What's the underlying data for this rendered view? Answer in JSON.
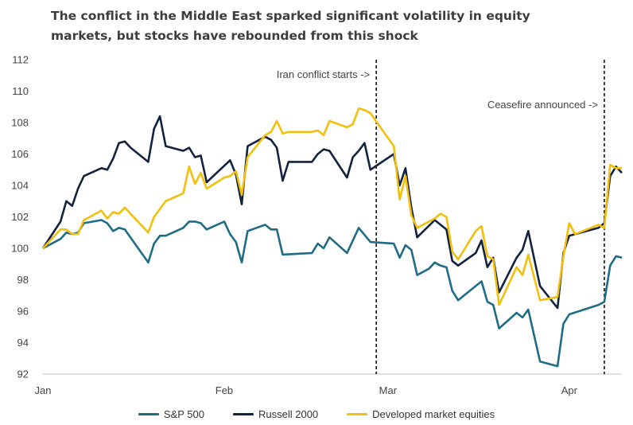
{
  "title_line1": "The conflict in the Middle East sparked significant volatility in equity",
  "title_line2": "markets, but stocks have rebounded from this shock",
  "chart_data": {
    "type": "line",
    "x_ticks": [
      "Jan",
      "Feb",
      "Mar",
      "Apr"
    ],
    "y_ticks": [
      "92",
      "94",
      "96",
      "98",
      "100",
      "102",
      "104",
      "106",
      "108",
      "110",
      "112"
    ],
    "ylim": [
      92,
      112
    ],
    "grid": false,
    "legend": "bottom",
    "annotations": [
      {
        "text": "Iran conflict starts ->",
        "x": "2025-02-27"
      },
      {
        "text": "Ceasefire announced ->",
        "x": "2025-04-07"
      }
    ],
    "series": [
      {
        "name": "S&P 500",
        "color": "#1f6c87",
        "points": [
          [
            "2025-01-01",
            100.0
          ],
          [
            "2025-01-04",
            100.6
          ],
          [
            "2025-01-05",
            101.0
          ],
          [
            "2025-01-06",
            100.9
          ],
          [
            "2025-01-07",
            101.0
          ],
          [
            "2025-01-08",
            101.6
          ],
          [
            "2025-01-11",
            101.8
          ],
          [
            "2025-01-12",
            101.6
          ],
          [
            "2025-01-13",
            101.1
          ],
          [
            "2025-01-14",
            101.3
          ],
          [
            "2025-01-15",
            101.2
          ],
          [
            "2025-01-19",
            99.1
          ],
          [
            "2025-01-20",
            100.3
          ],
          [
            "2025-01-21",
            100.8
          ],
          [
            "2025-01-22",
            100.8
          ],
          [
            "2025-01-25",
            101.3
          ],
          [
            "2025-01-26",
            101.7
          ],
          [
            "2025-01-27",
            101.7
          ],
          [
            "2025-01-28",
            101.6
          ],
          [
            "2025-01-29",
            101.2
          ],
          [
            "2025-02-01",
            101.7
          ],
          [
            "2025-02-02",
            100.9
          ],
          [
            "2025-02-03",
            100.4
          ],
          [
            "2025-02-04",
            99.1
          ],
          [
            "2025-02-05",
            101.1
          ],
          [
            "2025-02-08",
            101.5
          ],
          [
            "2025-02-09",
            101.2
          ],
          [
            "2025-02-10",
            101.2
          ],
          [
            "2025-02-11",
            99.6
          ],
          [
            "2025-02-16",
            99.7
          ],
          [
            "2025-02-17",
            100.3
          ],
          [
            "2025-02-18",
            100.0
          ],
          [
            "2025-02-19",
            100.7
          ],
          [
            "2025-02-22",
            99.7
          ],
          [
            "2025-02-24",
            101.3
          ],
          [
            "2025-02-26",
            100.4
          ],
          [
            "2025-03-02",
            100.3
          ],
          [
            "2025-03-03",
            99.4
          ],
          [
            "2025-03-04",
            100.2
          ],
          [
            "2025-03-05",
            99.9
          ],
          [
            "2025-03-06",
            98.3
          ],
          [
            "2025-03-08",
            98.7
          ],
          [
            "2025-03-09",
            99.1
          ],
          [
            "2025-03-10",
            98.9
          ],
          [
            "2025-03-11",
            98.8
          ],
          [
            "2025-03-12",
            97.3
          ],
          [
            "2025-03-13",
            96.7
          ],
          [
            "2025-03-16",
            97.6
          ],
          [
            "2025-03-17",
            97.9
          ],
          [
            "2025-03-18",
            96.6
          ],
          [
            "2025-03-19",
            96.4
          ],
          [
            "2025-03-20",
            94.9
          ],
          [
            "2025-03-23",
            95.9
          ],
          [
            "2025-03-24",
            95.6
          ],
          [
            "2025-03-25",
            96.1
          ],
          [
            "2025-03-27",
            92.8
          ],
          [
            "2025-03-30",
            92.5
          ],
          [
            "2025-03-31",
            95.2
          ],
          [
            "2025-04-01",
            95.8
          ],
          [
            "2025-04-06",
            96.4
          ],
          [
            "2025-04-07",
            96.6
          ],
          [
            "2025-04-08",
            98.9
          ],
          [
            "2025-04-09",
            99.5
          ],
          [
            "2025-04-10",
            99.4
          ]
        ]
      },
      {
        "name": "Russell 2000",
        "color": "#13233f",
        "points": [
          [
            "2025-01-01",
            100.0
          ],
          [
            "2025-01-04",
            101.7
          ],
          [
            "2025-01-05",
            103.0
          ],
          [
            "2025-01-06",
            102.7
          ],
          [
            "2025-01-07",
            103.8
          ],
          [
            "2025-01-08",
            104.6
          ],
          [
            "2025-01-11",
            105.1
          ],
          [
            "2025-01-12",
            105.0
          ],
          [
            "2025-01-13",
            105.7
          ],
          [
            "2025-01-14",
            106.7
          ],
          [
            "2025-01-15",
            106.8
          ],
          [
            "2025-01-16",
            106.4
          ],
          [
            "2025-01-19",
            105.5
          ],
          [
            "2025-01-20",
            107.6
          ],
          [
            "2025-01-21",
            108.4
          ],
          [
            "2025-01-22",
            106.5
          ],
          [
            "2025-01-25",
            106.2
          ],
          [
            "2025-01-26",
            106.4
          ],
          [
            "2025-01-27",
            105.8
          ],
          [
            "2025-01-28",
            105.9
          ],
          [
            "2025-01-29",
            104.2
          ],
          [
            "2025-02-02",
            105.6
          ],
          [
            "2025-02-03",
            104.7
          ],
          [
            "2025-02-04",
            102.8
          ],
          [
            "2025-02-05",
            106.5
          ],
          [
            "2025-02-08",
            107.1
          ],
          [
            "2025-02-09",
            106.9
          ],
          [
            "2025-02-10",
            106.4
          ],
          [
            "2025-02-11",
            104.3
          ],
          [
            "2025-02-12",
            105.5
          ],
          [
            "2025-02-16",
            105.5
          ],
          [
            "2025-02-17",
            106.0
          ],
          [
            "2025-02-18",
            106.3
          ],
          [
            "2025-02-19",
            106.2
          ],
          [
            "2025-02-22",
            104.5
          ],
          [
            "2025-02-23",
            105.8
          ],
          [
            "2025-02-24",
            106.2
          ],
          [
            "2025-02-25",
            106.7
          ],
          [
            "2025-02-26",
            105.0
          ],
          [
            "2025-03-02",
            106.0
          ],
          [
            "2025-03-03",
            104.0
          ],
          [
            "2025-03-04",
            105.1
          ],
          [
            "2025-03-05",
            102.6
          ],
          [
            "2025-03-06",
            100.7
          ],
          [
            "2025-03-09",
            101.8
          ],
          [
            "2025-03-10",
            101.5
          ],
          [
            "2025-03-11",
            101.2
          ],
          [
            "2025-03-12",
            99.2
          ],
          [
            "2025-03-13",
            98.9
          ],
          [
            "2025-03-16",
            99.7
          ],
          [
            "2025-03-17",
            100.5
          ],
          [
            "2025-03-18",
            98.8
          ],
          [
            "2025-03-19",
            99.4
          ],
          [
            "2025-03-20",
            97.2
          ],
          [
            "2025-03-23",
            99.4
          ],
          [
            "2025-03-24",
            99.9
          ],
          [
            "2025-03-25",
            101.1
          ],
          [
            "2025-03-27",
            97.6
          ],
          [
            "2025-03-30",
            96.2
          ],
          [
            "2025-03-31",
            99.7
          ],
          [
            "2025-04-01",
            100.8
          ],
          [
            "2025-04-06",
            101.3
          ],
          [
            "2025-04-07",
            101.6
          ],
          [
            "2025-04-08",
            104.6
          ],
          [
            "2025-04-09",
            105.2
          ],
          [
            "2025-04-10",
            104.8
          ]
        ]
      },
      {
        "name": "Developed market equities",
        "color": "#f2c00c",
        "points": [
          [
            "2025-01-01",
            100.0
          ],
          [
            "2025-01-04",
            101.2
          ],
          [
            "2025-01-05",
            101.2
          ],
          [
            "2025-01-06",
            100.9
          ],
          [
            "2025-01-07",
            100.9
          ],
          [
            "2025-01-08",
            101.8
          ],
          [
            "2025-01-11",
            102.4
          ],
          [
            "2025-01-12",
            101.9
          ],
          [
            "2025-01-13",
            102.3
          ],
          [
            "2025-01-14",
            102.2
          ],
          [
            "2025-01-15",
            102.6
          ],
          [
            "2025-01-19",
            101.0
          ],
          [
            "2025-01-20",
            102.0
          ],
          [
            "2025-01-22",
            103.0
          ],
          [
            "2025-01-25",
            103.5
          ],
          [
            "2025-01-26",
            105.2
          ],
          [
            "2025-01-27",
            104.1
          ],
          [
            "2025-01-28",
            104.8
          ],
          [
            "2025-01-29",
            103.8
          ],
          [
            "2025-02-01",
            104.5
          ],
          [
            "2025-02-02",
            104.6
          ],
          [
            "2025-02-03",
            104.9
          ],
          [
            "2025-02-04",
            103.4
          ],
          [
            "2025-02-05",
            105.8
          ],
          [
            "2025-02-08",
            107.2
          ],
          [
            "2025-02-09",
            107.4
          ],
          [
            "2025-02-10",
            108.1
          ],
          [
            "2025-02-11",
            107.3
          ],
          [
            "2025-02-12",
            107.4
          ],
          [
            "2025-02-16",
            107.4
          ],
          [
            "2025-02-17",
            107.5
          ],
          [
            "2025-02-18",
            107.2
          ],
          [
            "2025-02-19",
            108.1
          ],
          [
            "2025-02-22",
            107.7
          ],
          [
            "2025-02-23",
            107.9
          ],
          [
            "2025-02-24",
            108.9
          ],
          [
            "2025-02-25",
            108.8
          ],
          [
            "2025-02-26",
            108.6
          ],
          [
            "2025-03-02",
            106.5
          ],
          [
            "2025-03-03",
            103.1
          ],
          [
            "2025-03-04",
            104.6
          ],
          [
            "2025-03-05",
            102.1
          ],
          [
            "2025-03-06",
            101.3
          ],
          [
            "2025-03-09",
            101.9
          ],
          [
            "2025-03-10",
            102.2
          ],
          [
            "2025-03-11",
            102.0
          ],
          [
            "2025-03-12",
            99.8
          ],
          [
            "2025-03-13",
            99.3
          ],
          [
            "2025-03-16",
            101.1
          ],
          [
            "2025-03-17",
            101.4
          ],
          [
            "2025-03-18",
            99.5
          ],
          [
            "2025-03-19",
            99.3
          ],
          [
            "2025-03-20",
            96.4
          ],
          [
            "2025-03-23",
            98.8
          ],
          [
            "2025-03-24",
            98.3
          ],
          [
            "2025-03-25",
            99.6
          ],
          [
            "2025-03-27",
            96.7
          ],
          [
            "2025-03-30",
            96.9
          ],
          [
            "2025-03-31",
            99.5
          ],
          [
            "2025-04-01",
            101.6
          ],
          [
            "2025-04-02",
            100.9
          ],
          [
            "2025-04-06",
            101.5
          ],
          [
            "2025-04-07",
            101.3
          ],
          [
            "2025-04-08",
            105.3
          ],
          [
            "2025-04-09",
            105.1
          ],
          [
            "2025-04-10",
            105.1
          ]
        ]
      }
    ]
  }
}
